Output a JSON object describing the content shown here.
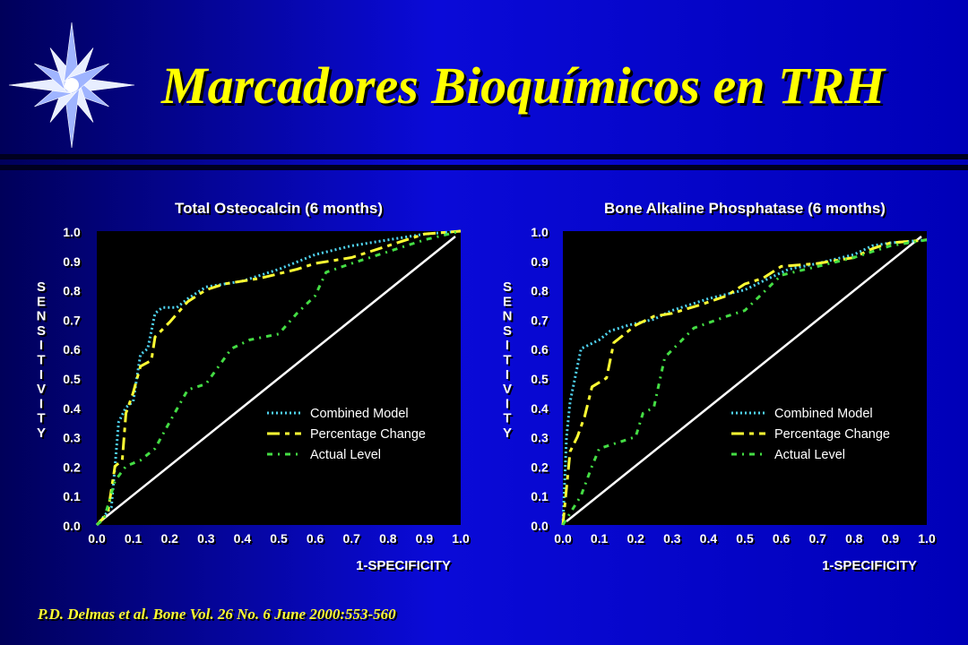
{
  "title": "Marcadores Bioquímicos en TRH",
  "citation": "P.D. Delmas et al. Bone Vol. 26 No. 6 June 2000:553-560",
  "colors": {
    "title": "#ffff00",
    "combined": "#4fd3f0",
    "percentage": "#ffff33",
    "actual": "#44dd44",
    "diagonal": "#ffffff"
  },
  "chart_data": [
    {
      "type": "line",
      "title": "Total Osteocalcin (6 months)",
      "xlabel": "1-SPECIFICITY",
      "ylabel": "SENSITIVITY",
      "xlim": [
        0,
        1
      ],
      "ylim": [
        0,
        1
      ],
      "xticks": [
        "0.0",
        "0.1",
        "0.2",
        "0.3",
        "0.4",
        "0.5",
        "0.6",
        "0.7",
        "0.8",
        "0.9",
        "1.0"
      ],
      "yticks": [
        "0.0",
        "0.1",
        "0.2",
        "0.3",
        "0.4",
        "0.5",
        "0.6",
        "0.7",
        "0.8",
        "0.9",
        "1.0"
      ],
      "legend_position": "lower-right",
      "series": [
        {
          "name": "Combined Model",
          "style": "dotted",
          "points": [
            [
              0,
              0
            ],
            [
              0.02,
              0.03
            ],
            [
              0.04,
              0.06
            ],
            [
              0.05,
              0.2
            ],
            [
              0.06,
              0.35
            ],
            [
              0.08,
              0.4
            ],
            [
              0.1,
              0.42
            ],
            [
              0.12,
              0.58
            ],
            [
              0.14,
              0.6
            ],
            [
              0.16,
              0.72
            ],
            [
              0.18,
              0.74
            ],
            [
              0.22,
              0.74
            ],
            [
              0.25,
              0.77
            ],
            [
              0.3,
              0.81
            ],
            [
              0.4,
              0.83
            ],
            [
              0.5,
              0.87
            ],
            [
              0.6,
              0.92
            ],
            [
              0.7,
              0.95
            ],
            [
              0.8,
              0.97
            ],
            [
              0.9,
              0.99
            ],
            [
              1,
              1
            ]
          ]
        },
        {
          "name": "Percentage Change",
          "style": "dashed",
          "points": [
            [
              0,
              0
            ],
            [
              0.03,
              0.04
            ],
            [
              0.05,
              0.2
            ],
            [
              0.07,
              0.22
            ],
            [
              0.08,
              0.38
            ],
            [
              0.1,
              0.45
            ],
            [
              0.12,
              0.54
            ],
            [
              0.15,
              0.56
            ],
            [
              0.16,
              0.64
            ],
            [
              0.2,
              0.69
            ],
            [
              0.25,
              0.76
            ],
            [
              0.3,
              0.8
            ],
            [
              0.35,
              0.82
            ],
            [
              0.45,
              0.84
            ],
            [
              0.55,
              0.87
            ],
            [
              0.6,
              0.89
            ],
            [
              0.7,
              0.91
            ],
            [
              0.8,
              0.95
            ],
            [
              0.9,
              0.99
            ],
            [
              1,
              1
            ]
          ]
        },
        {
          "name": "Actual Level",
          "style": "dashdot",
          "points": [
            [
              0,
              0
            ],
            [
              0.02,
              0.02
            ],
            [
              0.05,
              0.15
            ],
            [
              0.08,
              0.2
            ],
            [
              0.12,
              0.22
            ],
            [
              0.16,
              0.26
            ],
            [
              0.2,
              0.35
            ],
            [
              0.25,
              0.46
            ],
            [
              0.3,
              0.48
            ],
            [
              0.37,
              0.6
            ],
            [
              0.42,
              0.63
            ],
            [
              0.5,
              0.65
            ],
            [
              0.55,
              0.72
            ],
            [
              0.6,
              0.78
            ],
            [
              0.63,
              0.86
            ],
            [
              0.7,
              0.89
            ],
            [
              0.8,
              0.93
            ],
            [
              0.9,
              0.97
            ],
            [
              1,
              1
            ]
          ]
        }
      ]
    },
    {
      "type": "line",
      "title": "Bone Alkaline Phosphatase (6 months)",
      "xlabel": "1-SPECIFICITY",
      "ylabel": "SENSITIVITY",
      "xlim": [
        0,
        1
      ],
      "ylim": [
        0,
        1
      ],
      "xticks": [
        "0.0",
        "0.1",
        "0.2",
        "0.3",
        "0.4",
        "0.5",
        "0.6",
        "0.7",
        "0.8",
        "0.9",
        "1.0"
      ],
      "yticks": [
        "0.0",
        "0.1",
        "0.2",
        "0.3",
        "0.4",
        "0.5",
        "0.6",
        "0.7",
        "0.8",
        "0.9",
        "1.0"
      ],
      "legend_position": "lower-right",
      "series": [
        {
          "name": "Combined Model",
          "style": "dotted",
          "points": [
            [
              0,
              0
            ],
            [
              0.01,
              0.3
            ],
            [
              0.02,
              0.42
            ],
            [
              0.05,
              0.6
            ],
            [
              0.1,
              0.63
            ],
            [
              0.13,
              0.66
            ],
            [
              0.18,
              0.68
            ],
            [
              0.25,
              0.7
            ],
            [
              0.3,
              0.73
            ],
            [
              0.35,
              0.75
            ],
            [
              0.4,
              0.77
            ],
            [
              0.5,
              0.8
            ],
            [
              0.55,
              0.83
            ],
            [
              0.62,
              0.87
            ],
            [
              0.7,
              0.89
            ],
            [
              0.8,
              0.92
            ],
            [
              0.85,
              0.95
            ],
            [
              0.9,
              0.96
            ],
            [
              1,
              0.97
            ]
          ]
        },
        {
          "name": "Percentage Change",
          "style": "dashed",
          "points": [
            [
              0,
              0
            ],
            [
              0.02,
              0.25
            ],
            [
              0.04,
              0.3
            ],
            [
              0.06,
              0.37
            ],
            [
              0.08,
              0.47
            ],
            [
              0.12,
              0.5
            ],
            [
              0.14,
              0.62
            ],
            [
              0.17,
              0.65
            ],
            [
              0.2,
              0.68
            ],
            [
              0.25,
              0.71
            ],
            [
              0.3,
              0.72
            ],
            [
              0.38,
              0.75
            ],
            [
              0.45,
              0.78
            ],
            [
              0.5,
              0.82
            ],
            [
              0.55,
              0.84
            ],
            [
              0.6,
              0.88
            ],
            [
              0.7,
              0.89
            ],
            [
              0.8,
              0.91
            ],
            [
              0.85,
              0.94
            ],
            [
              0.9,
              0.96
            ],
            [
              1,
              0.97
            ]
          ]
        },
        {
          "name": "Actual Level",
          "style": "dashdot",
          "points": [
            [
              0,
              0
            ],
            [
              0.02,
              0.04
            ],
            [
              0.05,
              0.1
            ],
            [
              0.08,
              0.2
            ],
            [
              0.1,
              0.26
            ],
            [
              0.15,
              0.28
            ],
            [
              0.2,
              0.3
            ],
            [
              0.22,
              0.38
            ],
            [
              0.25,
              0.4
            ],
            [
              0.28,
              0.57
            ],
            [
              0.32,
              0.62
            ],
            [
              0.36,
              0.67
            ],
            [
              0.45,
              0.71
            ],
            [
              0.5,
              0.73
            ],
            [
              0.55,
              0.79
            ],
            [
              0.6,
              0.85
            ],
            [
              0.7,
              0.88
            ],
            [
              0.8,
              0.91
            ],
            [
              0.9,
              0.95
            ],
            [
              1,
              0.97
            ]
          ]
        }
      ]
    }
  ]
}
